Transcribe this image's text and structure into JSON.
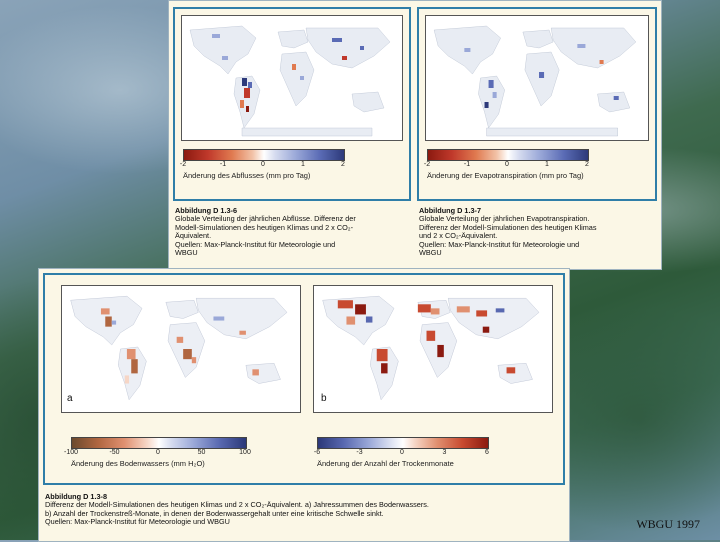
{
  "figure1": {
    "left_panel": {
      "colorbar_ticks": [
        "-2",
        "-1",
        "0",
        "1",
        "2"
      ],
      "colorbar_label": "Änderung des Abflusses (mm pro Tag)",
      "caption_title": "Abbildung D 1.3-6",
      "caption_lines": [
        "Globale Verteilung der jährlichen Abflüsse. Differenz der",
        "Modell-Simulationen des heutigen Klimas und 2 x CO₂-",
        "Äquivalent.",
        "Quellen: Max-Planck-Institut für Meteorologie und",
        "WBGU"
      ]
    },
    "right_panel": {
      "colorbar_ticks": [
        "-2",
        "-1",
        "0",
        "1",
        "2"
      ],
      "colorbar_label": "Änderung der Evapotranspiration (mm pro Tag)",
      "caption_title": "Abbildung D 1.3-7",
      "caption_lines": [
        "Globale Verteilung der jährlichen Evapotranspiration.",
        "Differenz der Modell-Simulationen des heutigen Klimas",
        "und 2 x CO₂-Äquivalent.",
        "Quellen: Max-Planck-Institut für Meteorologie und",
        "WBGU"
      ]
    }
  },
  "figure2": {
    "panel_a": {
      "letter": "a",
      "colorbar_ticks": [
        "-100",
        "-50",
        "0",
        "50",
        "100"
      ],
      "colorbar_label": "Änderung des Bodenwassers (mm H₂O)"
    },
    "panel_b": {
      "letter": "b",
      "colorbar_ticks": [
        "-6",
        "-3",
        "0",
        "3",
        "6"
      ],
      "colorbar_label": "Änderung der Anzahl der Trockenmonate"
    },
    "caption_title": "Abbildung D 1.3-8",
    "caption_lines": [
      "Differenz der Modell-Simulationen des heutigen Klimas und 2 x CO₂-Äquivalent. a) Jahressummen des Bodenwassers.",
      "b) Anzahl der Trockenstreß-Monate, in denen der Bodenwassergehalt unter eine kritische Schwelle sinkt.",
      "Quellen: Max-Planck-Institut für Meteorologie und WBGU"
    ]
  },
  "credit": "WBGU 1997",
  "colors": {
    "frame_blue": "#2f7ea8",
    "paper": "#fbf7e6",
    "negative_red": "#c0392b",
    "positive_blue": "#3b4a9a"
  }
}
